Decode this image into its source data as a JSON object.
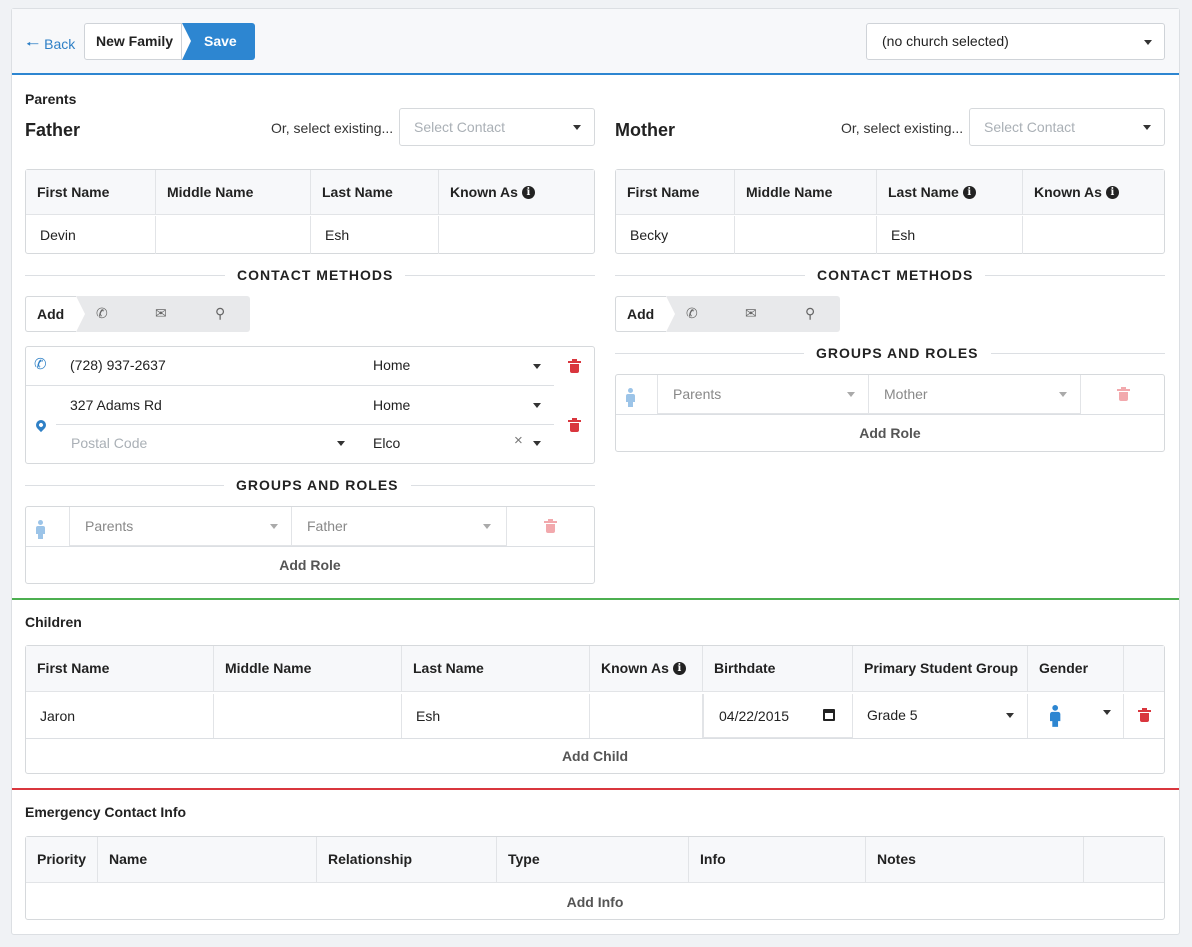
{
  "header": {
    "back_label": "Back",
    "breadcrumb": "New Family",
    "save_label": "Save",
    "church_select": "(no church selected)"
  },
  "parents": {
    "section_title": "Parents",
    "select_existing_label": "Or, select existing...",
    "select_contact_placeholder": "Select Contact",
    "name_headers": [
      "First Name",
      "Middle Name",
      "Last Name",
      "Known As"
    ],
    "contact_methods_label": "CONTACT METHODS",
    "groups_roles_label": "GROUPS AND ROLES",
    "add_label": "Add",
    "add_role_label": "Add Role",
    "father": {
      "title": "Father",
      "first_name": "Devin",
      "middle_name": "",
      "last_name": "Esh",
      "known_as": "",
      "phone": "(728) 937-2637",
      "phone_type": "Home",
      "address": "327 Adams Rd",
      "address_type": "Home",
      "postal_placeholder": "Postal Code",
      "city": "Elco",
      "group": "Parents",
      "role": "Father"
    },
    "mother": {
      "title": "Mother",
      "first_name": "Becky",
      "middle_name": "",
      "last_name": "Esh",
      "known_as": "",
      "group": "Parents",
      "role": "Mother"
    }
  },
  "children": {
    "section_title": "Children",
    "headers": [
      "First Name",
      "Middle Name",
      "Last Name",
      "Known As",
      "Birthdate",
      "Primary Student Group",
      "Gender"
    ],
    "rows": [
      {
        "first_name": "Jaron",
        "middle_name": "",
        "last_name": "Esh",
        "known_as": "",
        "birthdate": "04/22/2015",
        "student_group": "Grade 5",
        "gender_icon": "male-icon"
      }
    ],
    "add_label": "Add Child"
  },
  "emergency": {
    "section_title": "Emergency Contact Info",
    "headers": [
      "Priority",
      "Name",
      "Relationship",
      "Type",
      "Info",
      "Notes"
    ],
    "add_label": "Add Info"
  },
  "colors": {
    "accent": "#2d86d1",
    "children_bar": "#4caf50",
    "emergency_bar": "#d9363e",
    "danger": "#d9363e"
  }
}
